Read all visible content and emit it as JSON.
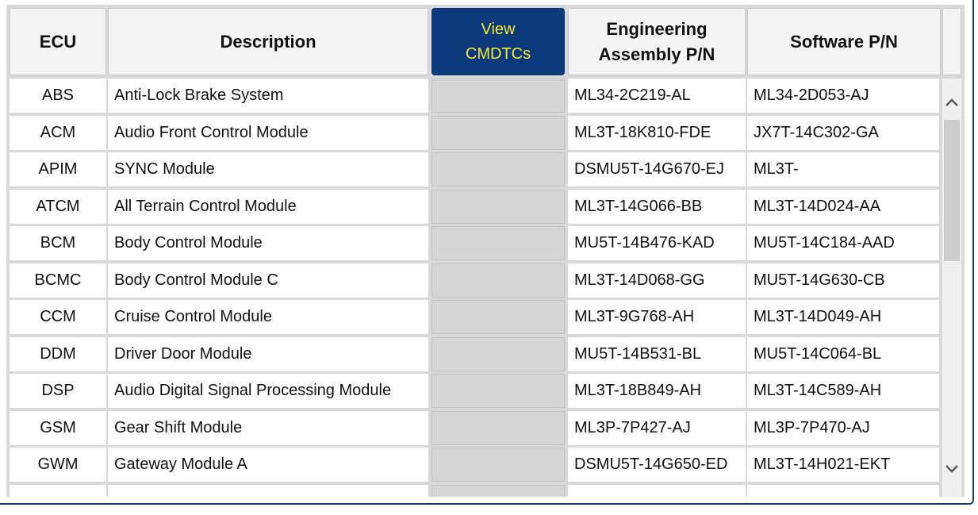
{
  "columns": {
    "ecu": "ECU",
    "description": "Description",
    "view_line1": "View",
    "view_line2": "CMDTCs",
    "eng_line1": "Engineering",
    "eng_line2": "Assembly P/N",
    "software": "Software P/N"
  },
  "rows": [
    {
      "ecu": "ABS",
      "description": "Anti-Lock Brake System",
      "eng": "ML34-2C219-AL",
      "sw": "ML34-2D053-AJ"
    },
    {
      "ecu": "ACM",
      "description": "Audio Front Control Module",
      "eng": "ML3T-18K810-FDE",
      "sw": "JX7T-14C302-GA"
    },
    {
      "ecu": "APIM",
      "description": "SYNC Module",
      "eng": "DSMU5T-14G670-EJ",
      "sw": "ML3T-"
    },
    {
      "ecu": "ATCM",
      "description": "All Terrain Control Module",
      "eng": "ML3T-14G066-BB",
      "sw": "ML3T-14D024-AA"
    },
    {
      "ecu": "BCM",
      "description": "Body Control Module",
      "eng": "MU5T-14B476-KAD",
      "sw": "MU5T-14C184-AAD"
    },
    {
      "ecu": "BCMC",
      "description": "Body Control Module C",
      "eng": "ML3T-14D068-GG",
      "sw": "MU5T-14G630-CB"
    },
    {
      "ecu": "CCM",
      "description": "Cruise Control Module",
      "eng": "ML3T-9G768-AH",
      "sw": "ML3T-14D049-AH"
    },
    {
      "ecu": "DDM",
      "description": "Driver Door Module",
      "eng": "MU5T-14B531-BL",
      "sw": "MU5T-14C064-BL"
    },
    {
      "ecu": "DSP",
      "description": "Audio Digital Signal Processing Module",
      "eng": "ML3T-18B849-AH",
      "sw": "ML3T-14C589-AH"
    },
    {
      "ecu": "GSM",
      "description": "Gear Shift Module",
      "eng": "ML3P-7P427-AJ",
      "sw": "ML3P-7P470-AJ"
    },
    {
      "ecu": "GWM",
      "description": "Gateway Module A",
      "eng": "DSMU5T-14G650-ED",
      "sw": "ML3T-14H021-EKT"
    },
    {
      "ecu": "",
      "description": "",
      "eng": "",
      "sw": ""
    }
  ],
  "icons": {
    "scroll_up": "chevron-up-icon",
    "scroll_down": "chevron-down-icon"
  },
  "colors": {
    "view_button_bg": "#0a3a7a",
    "view_button_text": "#f6e93a"
  }
}
